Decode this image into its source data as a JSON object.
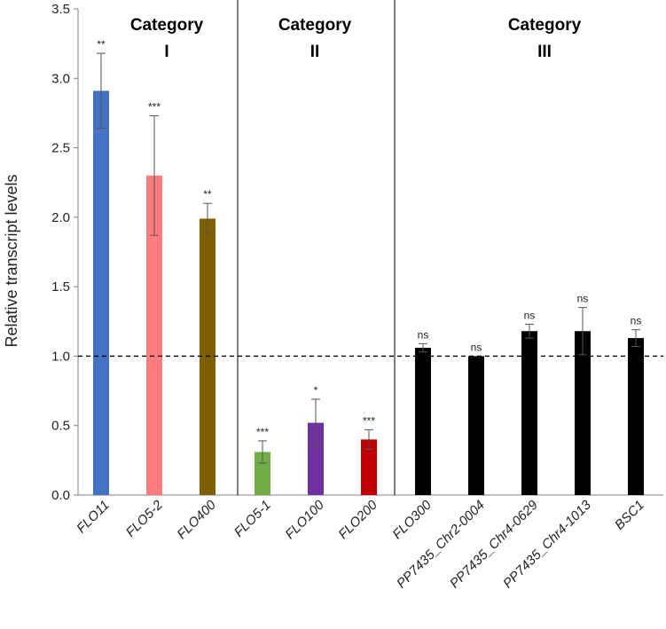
{
  "chart_data": {
    "type": "bar",
    "title": "",
    "xlabel": "",
    "ylabel": "Relative transcript levels",
    "ylim": [
      0,
      3.5
    ],
    "yticks": [
      0.0,
      0.5,
      1.0,
      1.5,
      2.0,
      2.5,
      3.0,
      3.5
    ],
    "ytick_labels": [
      "0.0",
      "0.5",
      "1.0",
      "1.5",
      "2.0",
      "2.5",
      "3.0",
      "3.5"
    ],
    "grid": false,
    "reference_line": 1.0,
    "categories": [
      "FLO11",
      "FLO5-2",
      "FLO400",
      "FLO5-1",
      "FLO100",
      "FLO200",
      "FLO300",
      "PP7435_Chr2-0004",
      "PP7435_Chr4-0629",
      "PP7435_Chr4-1013",
      "BSC1"
    ],
    "values": [
      2.91,
      2.3,
      1.99,
      0.31,
      0.52,
      0.4,
      1.06,
      1.0,
      1.18,
      1.18,
      1.13
    ],
    "errors": [
      0.27,
      0.43,
      0.11,
      0.08,
      0.17,
      0.07,
      0.03,
      0.0,
      0.05,
      0.17,
      0.06
    ],
    "significance": [
      "**",
      "***",
      "**",
      "***",
      "*",
      "***",
      "ns",
      "ns",
      "ns",
      "ns",
      "ns"
    ],
    "colors": [
      "#4472C4",
      "#FF7C80",
      "#7F6000",
      "#70AD47",
      "#7030A0",
      "#C00000",
      "#000000",
      "#000000",
      "#000000",
      "#000000",
      "#000000"
    ],
    "groups": [
      {
        "label_line1": "Category",
        "label_line2": "I",
        "start": 0,
        "end": 2
      },
      {
        "label_line1": "Category",
        "label_line2": "II",
        "start": 3,
        "end": 5
      },
      {
        "label_line1": "Category",
        "label_line2": "III",
        "start": 6,
        "end": 10
      }
    ]
  }
}
